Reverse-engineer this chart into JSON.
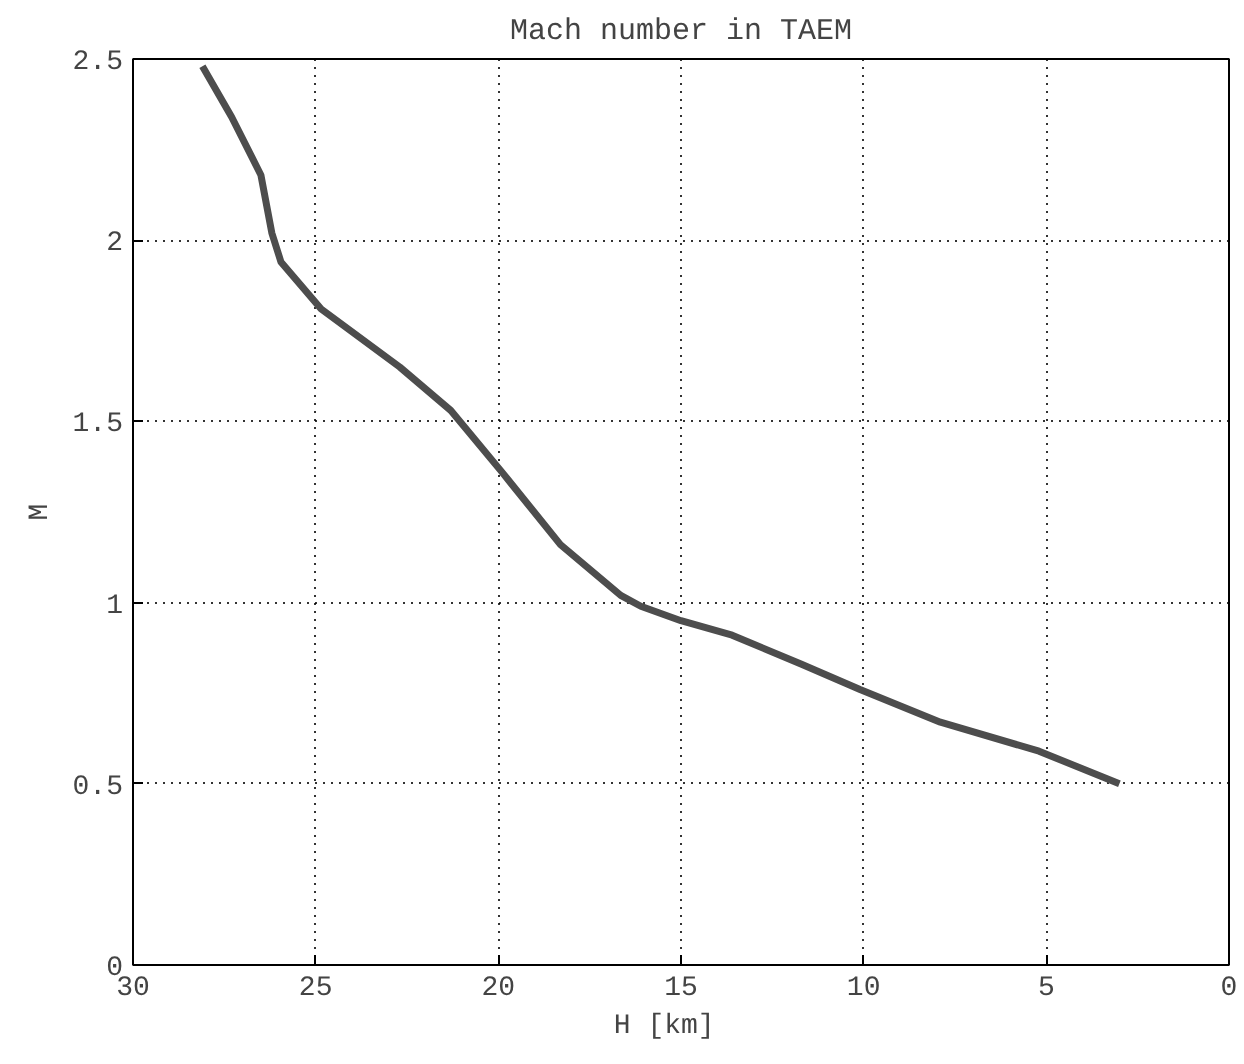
{
  "chart_data": {
    "type": "line",
    "title": "Mach number in TAEM",
    "xlabel": "H   [km]",
    "ylabel": "M",
    "x": [
      28.1,
      27.3,
      26.5,
      26.2,
      25.95,
      24.85,
      22.7,
      21.3,
      19.9,
      18.3,
      16.65,
      16.1,
      15.0,
      13.6,
      11.7,
      10.1,
      7.9,
      5.2,
      3.0
    ],
    "series": [
      {
        "color": "#4d4d4d",
        "values": [
          2.48,
          2.34,
          2.18,
          2.02,
          1.94,
          1.81,
          1.65,
          1.53,
          1.36,
          1.16,
          1.02,
          0.99,
          0.95,
          0.91,
          0.83,
          0.76,
          0.67,
          0.59,
          0.5
        ]
      }
    ],
    "xlim": [
      30,
      0
    ],
    "ylim": [
      0,
      2.5
    ],
    "xticks": [
      30,
      25,
      20,
      15,
      10,
      5,
      0
    ],
    "yticks": [
      0,
      0.5,
      1,
      1.5,
      2,
      2.5
    ],
    "grid": true,
    "line_style": "solid",
    "marker": "none"
  }
}
